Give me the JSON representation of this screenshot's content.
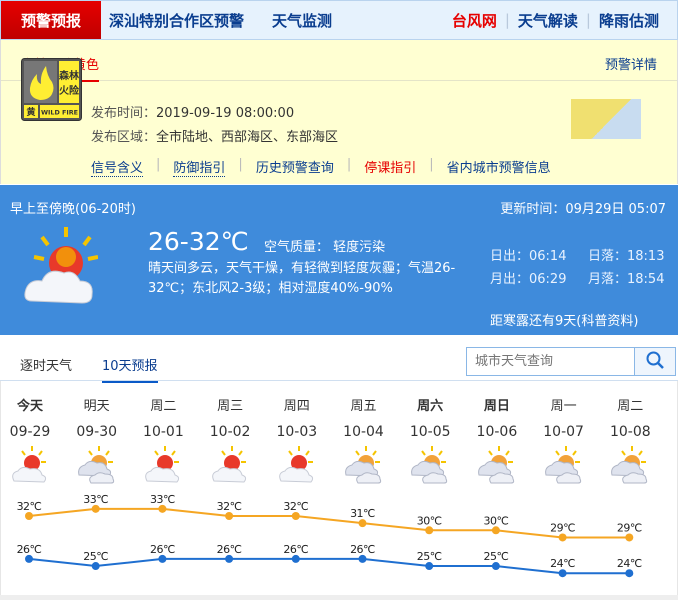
{
  "nav": {
    "active": "预警预报",
    "items": [
      "深汕特别合作区预警",
      "天气监测"
    ],
    "right": [
      {
        "label": "台风网",
        "color": "#e60000"
      },
      {
        "label": "天气解读",
        "color": "#0a3d8f"
      },
      {
        "label": "降雨估测",
        "color": "#0a3d8f"
      }
    ]
  },
  "warning": {
    "tab": "森林火险黄色",
    "detail_link": "预警详情",
    "sign": {
      "text1": "森林",
      "text2": "火险",
      "level": "黄",
      "en": "WILD FIRE"
    },
    "time_label": "发布时间：",
    "time": "2019-09-19 08:00:00",
    "area_label": "发布区域：",
    "area": "全市陆地、西部海区、东部海区",
    "links": [
      {
        "label": "信号含义",
        "style": "dot"
      },
      {
        "label": "防御指引",
        "style": "dot"
      },
      {
        "label": "历史预警查询",
        "style": ""
      },
      {
        "label": "停课指引",
        "style": "red"
      },
      {
        "label": "省内城市预警信息",
        "style": ""
      }
    ]
  },
  "now": {
    "period": "早上至傍晚(06-20时)",
    "update": "更新时间：09月29日 05:07",
    "temp": "26-32℃",
    "aq_label": "空气质量：",
    "aq": "轻度污染",
    "desc": "晴天间多云，天气干燥，有轻微到轻度灰霾；气温26-32℃；东北风2-3级；相对湿度40%-90%",
    "sunrise": "日出：06:14",
    "sunset": "日落：18:13",
    "moonrise": "月出：06:29",
    "moonset": "月落：18:54",
    "solar_term": "距寒露还有9天(科普资料)",
    "icon": "sunny-cloudy-icon"
  },
  "tabs": [
    {
      "label": "逐时天气",
      "active": false
    },
    {
      "label": "10天预报",
      "active": true
    }
  ],
  "search": {
    "placeholder": "城市天气查询"
  },
  "chart_data": {
    "type": "line",
    "categories": [
      "09-29",
      "09-30",
      "10-01",
      "10-02",
      "10-03",
      "10-04",
      "10-05",
      "10-06",
      "10-07",
      "10-08"
    ],
    "weekdays": [
      "今天",
      "明天",
      "周二",
      "周三",
      "周四",
      "周五",
      "周六",
      "周日",
      "周一",
      "周二"
    ],
    "icons": [
      "sunny-cloudy",
      "cloudy",
      "sunny-cloudy",
      "sunny-cloudy",
      "sunny-cloudy",
      "cloudy",
      "cloudy",
      "cloudy",
      "cloudy",
      "cloudy"
    ],
    "series": [
      {
        "values": [
          32,
          33,
          33,
          32,
          32,
          31,
          30,
          30,
          29,
          29
        ],
        "color": "#f5a623"
      },
      {
        "values": [
          26,
          25,
          26,
          26,
          26,
          26,
          25,
          25,
          24,
          24
        ],
        "color": "#1f6fd0"
      }
    ],
    "unit": "℃"
  }
}
